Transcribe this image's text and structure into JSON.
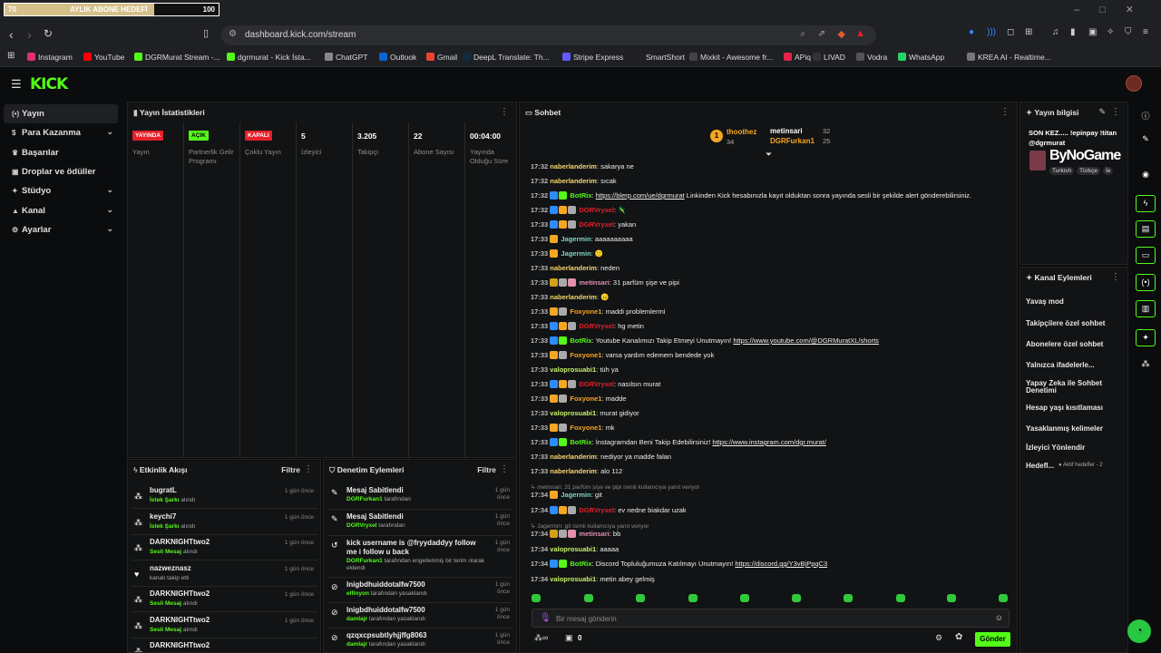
{
  "browser": {
    "progress": {
      "left_value": "70",
      "label": "AYLIK ABONE HEDEFİ",
      "right_value": "100",
      "fraction": 0.7,
      "fill_color": "#d6c08a"
    },
    "url": "dashboard.kick.com/stream",
    "bookmarks": [
      {
        "label": "Instagram",
        "color": "#e1306c"
      },
      {
        "label": "YouTube",
        "color": "#ff0000"
      },
      {
        "label": "DGRMurat Stream -...",
        "color": "#53fc18"
      },
      {
        "label": "dgrmurat - Kick İsta...",
        "color": "#53fc18"
      },
      {
        "label": "ChatGPT",
        "color": "#888888"
      },
      {
        "label": "Outlook",
        "color": "#0a64d6"
      },
      {
        "label": "Gmail",
        "color": "#ea4335"
      },
      {
        "label": "DeepL Translate: Th...",
        "color": "#0f2b46"
      },
      {
        "label": "Stripe Express",
        "color": "#635bff"
      },
      {
        "label": "SmartShort",
        "color": "#222222"
      },
      {
        "label": "Mixkit - Awesome fr...",
        "color": "#444444"
      },
      {
        "label": "APiq",
        "color": "#e2234a"
      },
      {
        "label": "LIVAD",
        "color": "#333333"
      },
      {
        "label": "Vodra",
        "color": "#555555"
      },
      {
        "label": "WhatsApp",
        "color": "#25d366"
      },
      {
        "label": "KREA AI - Realtime...",
        "color": "#777777"
      }
    ]
  },
  "kick": {
    "logo": "KICK"
  },
  "nav": {
    "items": [
      {
        "label": "Yayın",
        "icon": "broadcast-icon",
        "glyph": "(•)",
        "chevron": false,
        "active": true
      },
      {
        "label": "Para Kazanma",
        "icon": "money-icon",
        "glyph": "$",
        "chevron": true,
        "active": false
      },
      {
        "label": "Başarılar",
        "icon": "trophy-icon",
        "glyph": "♛",
        "chevron": false,
        "active": false
      },
      {
        "label": "Droplar ve ödüller",
        "icon": "gift-icon",
        "glyph": "▣",
        "chevron": false,
        "active": false
      },
      {
        "label": "Stüdyo",
        "icon": "studio-icon",
        "glyph": "✦",
        "chevron": true,
        "active": false
      },
      {
        "label": "Kanal",
        "icon": "channel-icon",
        "glyph": "▲",
        "chevron": true,
        "active": false
      },
      {
        "label": "Ayarlar",
        "icon": "gear-icon",
        "glyph": "⚙",
        "chevron": true,
        "active": false
      }
    ]
  },
  "stats": {
    "title": "Yayın İstatistikleri",
    "columns": [
      {
        "badge": "YAYINDA",
        "badge_color": "#e5202a",
        "label": "Yayın"
      },
      {
        "badge": "AÇIK",
        "badge_color": "#53fc18",
        "label": "Partnerlik Gelir Programı"
      },
      {
        "badge": "KAPALI",
        "badge_color": "#e5202a",
        "label": "Çoklu Yayın"
      },
      {
        "value": "5",
        "label": "İzleyici"
      },
      {
        "value": "3.205",
        "label": "Takipçi"
      },
      {
        "value": "22",
        "label": "Abone Sayısı"
      },
      {
        "value": "00:04:00",
        "label": "Yayında Olduğu Süre"
      }
    ]
  },
  "activity": {
    "title": "Etkinlik Akışı",
    "filter": "Filtre",
    "items": [
      {
        "name": "bugratL",
        "highlight": "İstek Şarkı",
        "rest": " alındı",
        "time": "1 gün önce",
        "icon": "gift-icon",
        "glyph": "⁂"
      },
      {
        "name": "keychi7",
        "highlight": "İstek Şarkı",
        "rest": " alındı",
        "time": "1 gün önce",
        "icon": "gift-icon",
        "glyph": "⁂"
      },
      {
        "name": "DARKNIGHTtwo2",
        "highlight": "Sesli Mesaj",
        "rest": " alındı",
        "time": "1 gün önce",
        "icon": "gift-icon",
        "glyph": "⁂"
      },
      {
        "name": "nazweznasz",
        "highlight": "",
        "rest": "kanalı takip etti",
        "time": "1 gün önce",
        "icon": "heart-icon",
        "glyph": "♥"
      },
      {
        "name": "DARKNIGHTtwo2",
        "highlight": "Sesli Mesaj",
        "rest": " alındı",
        "time": "1 gün önce",
        "icon": "gift-icon",
        "glyph": "⁂"
      },
      {
        "name": "DARKNIGHTtwo2",
        "highlight": "Sesli Mesaj",
        "rest": " alındı",
        "time": "1 gün önce",
        "icon": "gift-icon",
        "glyph": "⁂"
      },
      {
        "name": "DARKNIGHTtwo2",
        "highlight": "",
        "rest": "",
        "time": "",
        "icon": "gift-icon",
        "glyph": "⁂"
      }
    ]
  },
  "moderation": {
    "title": "Denetim Eylemleri",
    "filter": "Filtre",
    "items": [
      {
        "title": "Mesaj Sabitlendi",
        "user": "DGRFurkan1",
        "rest": " tarafından",
        "time": "1 gün önce",
        "icon": "pin-icon",
        "glyph": "✎"
      },
      {
        "title": "Mesaj Sabitlendi",
        "user": "DGRVryxel",
        "rest": " tarafından",
        "time": "1 gün önce",
        "icon": "pin-icon",
        "glyph": "✎"
      },
      {
        "title": "kick username is @fryydaddyy follow me i follow u back",
        "user": "DGRFurkan1",
        "rest": " tarafından engellenmiş bir terim olarak eklendi",
        "time": "1 gün önce",
        "icon": "undo-icon",
        "glyph": "↺"
      },
      {
        "title": "lnigbdhuiddotalfw7500",
        "user": "elfinyon",
        "rest": " tarafından yasaklandı",
        "time": "1 gün önce",
        "icon": "ban-icon",
        "glyph": "⊘"
      },
      {
        "title": "lnigbdhuiddotalfw7500",
        "user": "damlajr",
        "rest": " tarafından yasaklandı",
        "time": "1 gün önce",
        "icon": "ban-icon",
        "glyph": "⊘"
      },
      {
        "title": "qzqxcpsubtlyhjjffg8063",
        "user": "damlajr",
        "rest": " tarafından yasaklandı",
        "time": "1 gün önce",
        "icon": "ban-icon",
        "glyph": "⊘"
      }
    ]
  },
  "chat": {
    "title": "Sohbet",
    "top": [
      {
        "rank": "1",
        "name": "thoothez",
        "count": "34"
      },
      {
        "name": "metinsari",
        "count": "32"
      },
      {
        "name": "DGRFurkan1",
        "count": "25"
      }
    ],
    "messages": [
      {
        "time": "17:32",
        "badges": [],
        "user": "naberlanderim",
        "color": "#f5d76e",
        "text": "sakarya ne"
      },
      {
        "time": "17:32",
        "badges": [],
        "user": "naberlanderim",
        "color": "#f5d76e",
        "text": "sıcak"
      },
      {
        "time": "17:32",
        "badges": [
          "#2d8cff",
          "#53fc18"
        ],
        "user": "BotRix",
        "color": "#53fc18",
        "text": "",
        "link": "https://blerp.com/ue/dgrmurat",
        "after": " Linkinden Kick hesabınızla kayıt olduktan sonra yayında sesli bir şekilde alert gönderebilirsiniz."
      },
      {
        "time": "17:32",
        "badges": [
          "#2d8cff",
          "#f5a623",
          "#aaaaaa"
        ],
        "user": "DGRVryxel",
        "color": "#e5202a",
        "text": "🦎"
      },
      {
        "time": "17:33",
        "badges": [
          "#2d8cff",
          "#f5a623",
          "#aaaaaa"
        ],
        "user": "DGRVryxel",
        "color": "#e5202a",
        "text": "yakan"
      },
      {
        "time": "17:33",
        "badges": [
          "#f5a623"
        ],
        "user": "Jagermin",
        "color": "#7fd6c2",
        "text": "aaaaaaaaaa"
      },
      {
        "time": "17:33",
        "badges": [
          "#f5a623"
        ],
        "user": "Jagermin",
        "color": "#7fd6c2",
        "text": "🙂"
      },
      {
        "time": "17:33",
        "badges": [],
        "user": "naberlanderim",
        "color": "#f5d76e",
        "text": "neden"
      },
      {
        "time": "17:33",
        "badges": [
          "#d4a017",
          "#aaaaaa",
          "#e58fb0"
        ],
        "user": "metinsari",
        "color": "#e58fb0",
        "text": "31 parfüm şişe ve pipi"
      },
      {
        "time": "17:33",
        "badges": [],
        "user": "naberlanderim",
        "color": "#f5d76e",
        "text": "😐"
      },
      {
        "time": "17:33",
        "badges": [
          "#f5a623",
          "#aaaaaa"
        ],
        "user": "Foxyone1",
        "color": "#f5a623",
        "text": "maddi problemlermi"
      },
      {
        "time": "17:33",
        "badges": [
          "#2d8cff",
          "#f5a623",
          "#aaaaaa"
        ],
        "user": "DGRVryxel",
        "color": "#e5202a",
        "text": "hg metin"
      },
      {
        "time": "17:33",
        "badges": [
          "#2d8cff",
          "#53fc18"
        ],
        "user": "BotRix",
        "color": "#53fc18",
        "text": "Youtube Kanalımızı Takip Etmeyi Unutmayın! ",
        "link": "https://www.youtube.com/@DGRMuratXL/shorts",
        "after": ""
      },
      {
        "time": "17:33",
        "badges": [
          "#f5a623",
          "#aaaaaa"
        ],
        "user": "Foxyone1",
        "color": "#f5a623",
        "text": "varsa yardım edemem bendede yok"
      },
      {
        "time": "17:33",
        "badges": [],
        "user": "valoprosuabi1",
        "color": "#c6f26b",
        "text": "tüh ya"
      },
      {
        "time": "17:33",
        "badges": [
          "#2d8cff",
          "#f5a623",
          "#aaaaaa"
        ],
        "user": "DGRVryxel",
        "color": "#e5202a",
        "text": "nasılsın murat"
      },
      {
        "time": "17:33",
        "badges": [
          "#f5a623",
          "#aaaaaa"
        ],
        "user": "Foxyone1",
        "color": "#f5a623",
        "text": "madde"
      },
      {
        "time": "17:33",
        "badges": [],
        "user": "valoprosuabi1",
        "color": "#c6f26b",
        "text": "murat gidiyor"
      },
      {
        "time": "17:33",
        "badges": [
          "#f5a623",
          "#aaaaaa"
        ],
        "user": "Foxyone1",
        "color": "#f5a623",
        "text": "mk"
      },
      {
        "time": "17:33",
        "badges": [
          "#2d8cff",
          "#53fc18"
        ],
        "user": "BotRix",
        "color": "#53fc18",
        "text": "İnstagramdan Beni Takip Edebilirsiniz! ",
        "link": "https://www.instagram.com/dgr.murat/",
        "after": ""
      },
      {
        "time": "17:33",
        "badges": [],
        "user": "naberlanderim",
        "color": "#f5d76e",
        "text": "nediyor ya madde falan"
      },
      {
        "time": "17:33",
        "badges": [],
        "user": "naberlanderim",
        "color": "#f5d76e",
        "text": "alo 112"
      },
      {
        "reply": "↳ metinsari: 31 parfüm şişe ve pipi isimli kullanıcıya yanıt veriyor"
      },
      {
        "time": "17:34",
        "badges": [
          "#f5a623"
        ],
        "user": "Jagermin",
        "color": "#7fd6c2",
        "text": "git"
      },
      {
        "time": "17:34",
        "badges": [
          "#2d8cff",
          "#f5a623",
          "#aaaaaa"
        ],
        "user": "DGRVryxel",
        "color": "#e5202a",
        "text": "ev nedne biakdar uzak"
      },
      {
        "reply": "↳ Jagermin: git isimli kullanıcıya yanıt veriyor"
      },
      {
        "time": "17:34",
        "badges": [
          "#d4a017",
          "#aaaaaa",
          "#e58fb0"
        ],
        "user": "metinsari",
        "color": "#e58fb0",
        "text": "bb"
      },
      {
        "time": "17:34",
        "badges": [],
        "user": "valoprosuabi1",
        "color": "#c6f26b",
        "text": "aaaaa"
      },
      {
        "time": "17:34",
        "badges": [
          "#2d8cff",
          "#53fc18"
        ],
        "user": "BotRix",
        "color": "#53fc18",
        "text": "Discord Topluluğumuza Katılmayı Unutmayın! ",
        "link": "https://discord.gg/Y3vBjPpqC3",
        "after": ""
      },
      {
        "time": "17:34",
        "badges": [],
        "user": "valoprosuabi1",
        "color": "#c6f26b",
        "text": "metin abey gelmiş"
      }
    ],
    "input_placeholder": "Bir mesaj gönderin",
    "footer_count": "0",
    "send_label": "Gönder"
  },
  "stream_info": {
    "title": "Yayın bilgisi",
    "text": "SON KEZ..... !epinpay !titan @dgrmurat",
    "tags": [
      "Turkish",
      "Türkçe",
      "İe"
    ],
    "watermark": "ByNoGame"
  },
  "channel_actions": {
    "title": "Kanal Eylemleri",
    "items": [
      {
        "label": "Yavaş mod",
        "control": "chevron"
      },
      {
        "label": "Takipçilere özel sohbet",
        "control": "chevron"
      },
      {
        "label": "Abonelere özel sohbet",
        "control": "toggle"
      },
      {
        "label": "Yalnızca ifadelerle...",
        "control": "toggle"
      },
      {
        "label": "Yapay Zeka ile Sohbet Denetimi",
        "control": "external"
      },
      {
        "label": "Hesap yaşı kısıtlaması",
        "control": "chevron"
      },
      {
        "label": "Yasaklanmış kelimeler",
        "control": "chevron"
      },
      {
        "label": "İzleyici Yönlendir",
        "control": "none"
      },
      {
        "label": "Hedefl...",
        "control": "chevron",
        "note": "● Aktif hedefler - 2"
      }
    ]
  },
  "rail": {
    "icons": [
      {
        "name": "info-icon",
        "glyph": "ⓘ",
        "boxed": false
      },
      {
        "name": "edit-icon",
        "glyph": "✎",
        "boxed": false
      },
      {
        "name": "target-icon",
        "glyph": "◉",
        "boxed": false
      },
      {
        "name": "lightning-icon",
        "glyph": "ϟ",
        "boxed": true
      },
      {
        "name": "note-icon",
        "glyph": "▤",
        "boxed": true
      },
      {
        "name": "chat-icon",
        "glyph": "▭",
        "boxed": true
      },
      {
        "name": "broadcast-icon",
        "glyph": "(•)",
        "boxed": true
      },
      {
        "name": "moderation-icon",
        "glyph": "▥",
        "boxed": true
      },
      {
        "name": "wrench-icon",
        "glyph": "✦",
        "boxed": true
      },
      {
        "name": "dots-icon",
        "glyph": "⁂",
        "boxed": false
      }
    ]
  }
}
